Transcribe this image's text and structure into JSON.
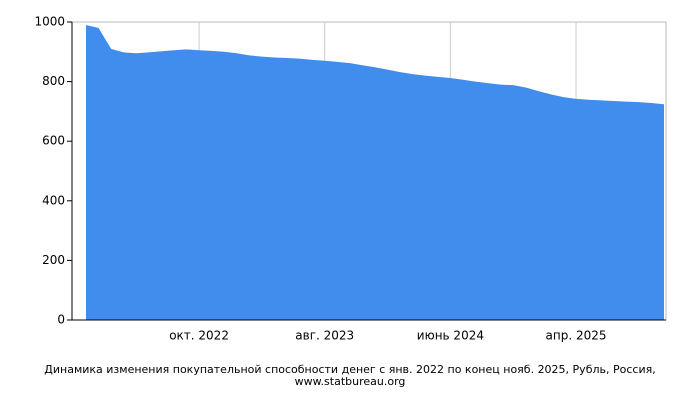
{
  "chart_data": {
    "type": "area",
    "title": "Динамика изменения покупательной способности денег с янв. 2022 по конец нояб. 2025, Рубль, Россия, www.statbureau.org",
    "categories": [
      null,
      null,
      null,
      null,
      null,
      null,
      null,
      null,
      null,
      "окт. 2022",
      null,
      null,
      null,
      null,
      null,
      null,
      null,
      null,
      null,
      "авг. 2023",
      null,
      null,
      null,
      null,
      null,
      null,
      null,
      null,
      null,
      "июнь 2024",
      null,
      null,
      null,
      null,
      null,
      null,
      null,
      null,
      null,
      "апр. 2025",
      null,
      null,
      null,
      null,
      null,
      null,
      null
    ],
    "values": [
      990,
      980,
      910,
      898,
      895,
      898,
      902,
      905,
      908,
      905,
      903,
      900,
      895,
      888,
      884,
      881,
      879,
      877,
      873,
      870,
      866,
      862,
      855,
      848,
      840,
      832,
      825,
      820,
      816,
      812,
      806,
      800,
      795,
      790,
      788,
      780,
      768,
      757,
      748,
      742,
      739,
      737,
      735,
      733,
      731,
      728,
      724
    ],
    "color": "#418ded",
    "ylim": [
      0,
      1000
    ],
    "yticks": [
      0,
      200,
      400,
      600,
      800,
      1000
    ],
    "grid": true
  }
}
